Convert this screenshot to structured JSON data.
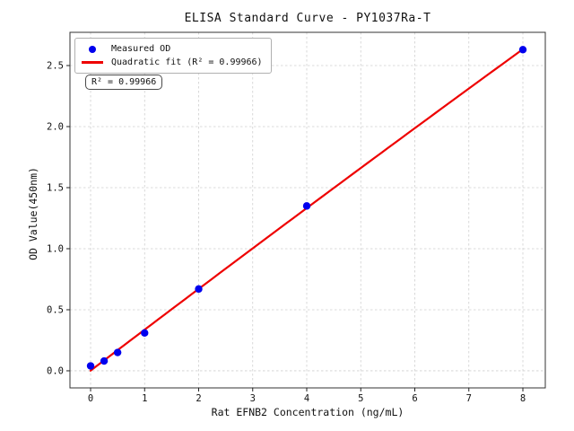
{
  "chart_data": {
    "type": "scatter",
    "title": "ELISA Standard Curve - PY1037Ra-T",
    "xlabel": "Rat EFNB2 Concentration (ng/mL)",
    "ylabel": "OD Value(450nm)",
    "xlim": [
      -0.382,
      8.415
    ],
    "ylim": [
      -0.14,
      2.772
    ],
    "xticks": [
      0,
      1,
      2,
      3,
      4,
      5,
      6,
      7,
      8
    ],
    "xtick_labels": [
      "0",
      "1",
      "2",
      "3",
      "4",
      "5",
      "6",
      "7",
      "8"
    ],
    "yticks": [
      0,
      0.5,
      1.0,
      1.5,
      2.0,
      2.5
    ],
    "ytick_labels": [
      "0.0",
      "0.5",
      "1.0",
      "1.5",
      "2.0",
      "2.5"
    ],
    "grid": true,
    "grid_color": "#cfcfcf",
    "spine_color": "#333333",
    "legend_position": "upper left",
    "series": [
      {
        "name": "Measured OD",
        "type": "scatter",
        "color": "#0000ee",
        "x": [
          0,
          0.25,
          0.5,
          1,
          2,
          4,
          8
        ],
        "y": [
          0.04,
          0.08,
          0.15,
          0.31,
          0.67,
          1.35,
          2.63
        ]
      },
      {
        "name": "Quadratic fit (R² = 0.99966)",
        "type": "line",
        "fit": "quadratic",
        "color": "#ee0000"
      }
    ],
    "annotation": "R² = 0.99966",
    "r_squared": 0.99966
  }
}
